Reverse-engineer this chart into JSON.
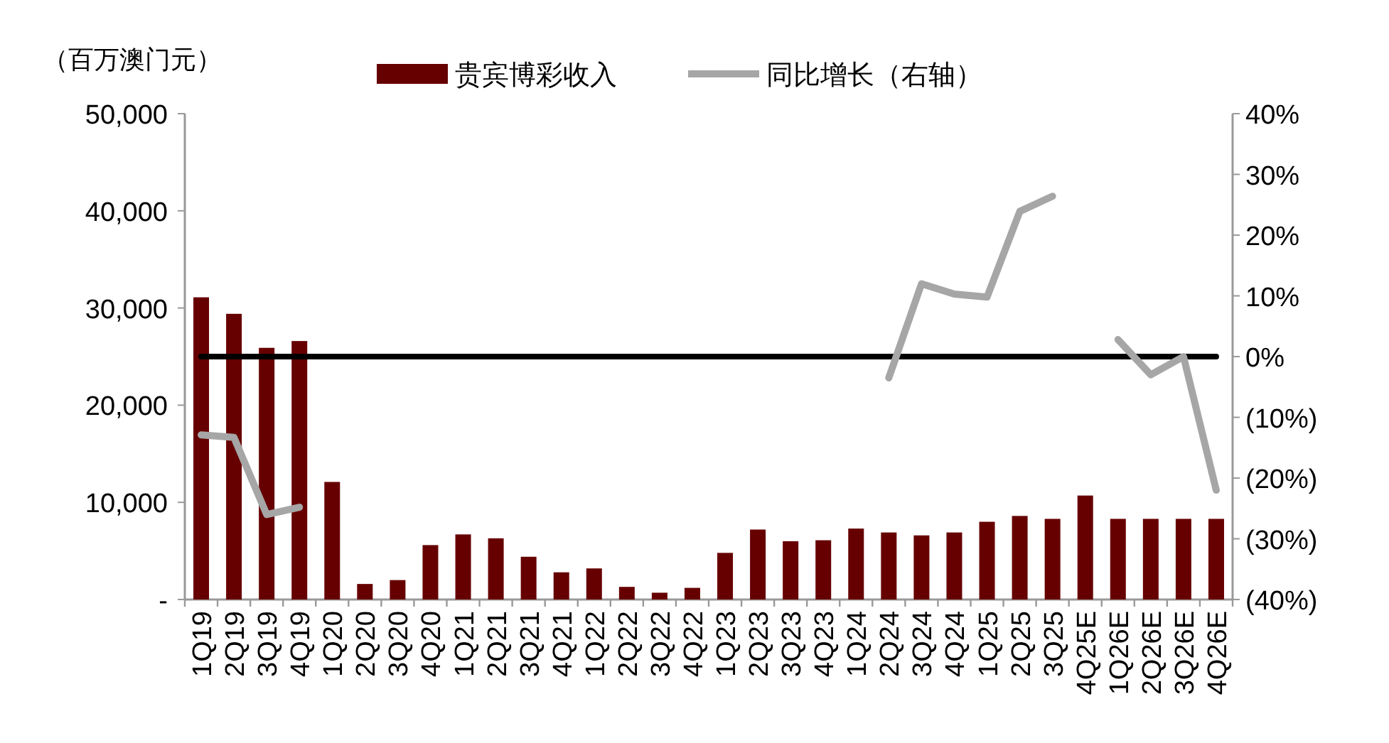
{
  "chart_data": {
    "type": "bar",
    "ylabel": "（百万澳门元）",
    "categories": [
      "1Q19",
      "2Q19",
      "3Q19",
      "4Q19",
      "1Q20",
      "2Q20",
      "3Q20",
      "4Q20",
      "1Q21",
      "2Q21",
      "3Q21",
      "4Q21",
      "1Q22",
      "2Q22",
      "3Q22",
      "4Q22",
      "1Q23",
      "2Q23",
      "3Q23",
      "4Q23",
      "1Q24",
      "2Q24",
      "3Q24",
      "4Q24",
      "1Q25",
      "2Q25",
      "3Q25",
      "4Q25E",
      "1Q26E",
      "2Q26E",
      "3Q26E",
      "4Q26E"
    ],
    "series": [
      {
        "name": "贵宾博彩收入",
        "color": "#660000",
        "values": [
          31100,
          29400,
          25900,
          26600,
          12100,
          1600,
          2000,
          5600,
          6700,
          6300,
          4400,
          2800,
          3200,
          1300,
          700,
          1200,
          4800,
          7200,
          6000,
          6100,
          7300,
          6900,
          6600,
          6900,
          8000,
          8600,
          8300,
          10700,
          8300,
          8300,
          8300,
          8300
        ]
      },
      {
        "name": "同比增长（右轴）",
        "type": "line",
        "axis": "y2",
        "color": "#a6a6a6",
        "values": [
          -12.9,
          -13.3,
          -26,
          -24.8,
          null,
          null,
          null,
          null,
          null,
          null,
          null,
          null,
          null,
          null,
          null,
          null,
          null,
          null,
          null,
          null,
          null,
          -3.5,
          12,
          10.3,
          9.8,
          23.9,
          26.4,
          null,
          2.8,
          -3,
          0,
          -22
        ]
      }
    ],
    "ylim": [
      0,
      50000
    ],
    "yticks": [
      {
        "value": 0,
        "label": "-"
      },
      {
        "value": 10000,
        "label": "10,000"
      },
      {
        "value": 20000,
        "label": "20,000"
      },
      {
        "value": 30000,
        "label": "30,000"
      },
      {
        "value": 40000,
        "label": "40,000"
      },
      {
        "value": 50000,
        "label": "50,000"
      }
    ],
    "y2lim": [
      -40,
      40
    ],
    "y2ticks": [
      {
        "value": -40,
        "label": "(40%)"
      },
      {
        "value": -30,
        "label": "(30%)"
      },
      {
        "value": -20,
        "label": "(20%)"
      },
      {
        "value": -10,
        "label": "(10%)"
      },
      {
        "value": 0,
        "label": "0%"
      },
      {
        "value": 10,
        "label": "10%"
      },
      {
        "value": 20,
        "label": "20%"
      },
      {
        "value": 30,
        "label": "30%"
      },
      {
        "value": 40,
        "label": "40%"
      }
    ],
    "ref_lines": [
      {
        "axis": "y2",
        "value": 0,
        "color": "#000000"
      }
    ],
    "legend": "top",
    "grid": false
  }
}
